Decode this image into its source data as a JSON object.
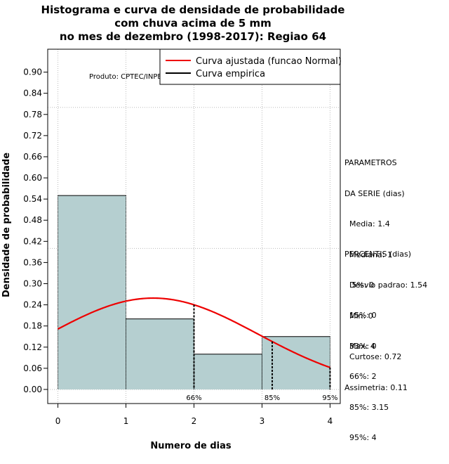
{
  "title_lines": [
    "Histograma e curva de densidade de probabilidade",
    "com chuva acima de 5 mm",
    "no mes de dezembro (1998-2017): Regiao 64"
  ],
  "credit": "Produto: CPTEC/INPE",
  "colors": {
    "bar_fill": "#b5cfd0",
    "curve": "#ee0000",
    "grid": "#bbbbbb"
  },
  "chart_data": {
    "type": "bar",
    "xlabel": "Numero de dias",
    "ylabel": "Densidade de probabilidade",
    "xlim": [
      -0.15,
      4.15
    ],
    "ylim": [
      -0.04,
      0.965
    ],
    "x_ticks": [
      "0",
      "1",
      "2",
      "3",
      "4"
    ],
    "x_tick_values": [
      0,
      1,
      2,
      3,
      4
    ],
    "y_ticks": [
      "0.00",
      "0.06",
      "0.12",
      "0.18",
      "0.24",
      "0.30",
      "0.36",
      "0.42",
      "0.48",
      "0.54",
      "0.60",
      "0.66",
      "0.72",
      "0.78",
      "0.84",
      "0.90"
    ],
    "y_tick_values": [
      0,
      0.06,
      0.12,
      0.18,
      0.24,
      0.3,
      0.36,
      0.42,
      0.48,
      0.54,
      0.6,
      0.66,
      0.72,
      0.78,
      0.84,
      0.9
    ],
    "bins": [
      {
        "from": 0,
        "to": 1,
        "density": 0.55
      },
      {
        "from": 1,
        "to": 2,
        "density": 0.2
      },
      {
        "from": 2,
        "to": 3,
        "density": 0.1
      },
      {
        "from": 3,
        "to": 4,
        "density": 0.15
      }
    ],
    "fit": {
      "name": "Curva ajustada (funcao Normal)",
      "mean": 1.4,
      "sd": 1.54
    },
    "empirical_name": "Curva empirica",
    "percentile_markers": [
      {
        "label": "66%",
        "x": 2
      },
      {
        "label": "85%",
        "x": 3.15
      },
      {
        "label": "95%",
        "x": 4
      }
    ],
    "legend_position": "top-right",
    "grid": true
  },
  "parameters": {
    "heading": [
      "PARAMETROS",
      "DA SERIE (dias)"
    ],
    "lines": [
      "  Media: 1.4",
      "  Mediana: 1",
      "  Desvio padrao: 1.54",
      "  Min: 0",
      "  Max: 4"
    ]
  },
  "percentiles": {
    "heading": "PERCENTIS (dias)",
    "lines": [
      "   5%: 0",
      "  15%: 0",
      "  33%: 0",
      "  66%: 2",
      "  85%: 3.15",
      "  95%: 4"
    ]
  },
  "shape_stats": [
    "  Curtose: 0.72",
    "Assimetria: 0.11"
  ]
}
